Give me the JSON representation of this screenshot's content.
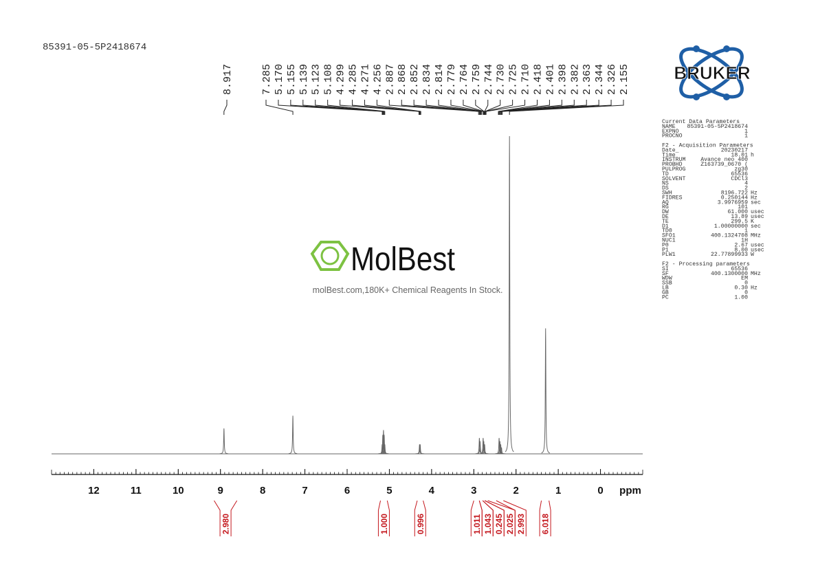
{
  "chart_data": {
    "type": "nmr",
    "title": "85391-05-5P2418674",
    "xlim": [
      13,
      -1
    ],
    "xticks": [
      12,
      11,
      10,
      9,
      8,
      7,
      6,
      5,
      4,
      3,
      2,
      1,
      0
    ],
    "xlabel": "ppm",
    "color": "#666666",
    "peak_labels": [
      {
        "value": 8.917,
        "label": "8.917"
      },
      {
        "value": 7.285,
        "label": "7.285"
      },
      {
        "value": 5.17,
        "label": "5.170"
      },
      {
        "value": 5.155,
        "label": "5.155"
      },
      {
        "value": 5.139,
        "label": "5.139"
      },
      {
        "value": 5.123,
        "label": "5.123"
      },
      {
        "value": 5.108,
        "label": "5.108"
      },
      {
        "value": 4.299,
        "label": "4.299"
      },
      {
        "value": 4.285,
        "label": "4.285"
      },
      {
        "value": 4.271,
        "label": "4.271"
      },
      {
        "value": 4.256,
        "label": "4.256"
      },
      {
        "value": 2.887,
        "label": "2.887"
      },
      {
        "value": 2.868,
        "label": "2.868"
      },
      {
        "value": 2.852,
        "label": "2.852"
      },
      {
        "value": 2.834,
        "label": "2.834"
      },
      {
        "value": 2.814,
        "label": "2.814"
      },
      {
        "value": 2.779,
        "label": "2.779"
      },
      {
        "value": 2.764,
        "label": "2.764"
      },
      {
        "value": 2.759,
        "label": "2.759"
      },
      {
        "value": 2.744,
        "label": "2.744"
      },
      {
        "value": 2.73,
        "label": "2.730"
      },
      {
        "value": 2.725,
        "label": "2.725"
      },
      {
        "value": 2.71,
        "label": "2.710"
      },
      {
        "value": 2.418,
        "label": "2.418"
      },
      {
        "value": 2.401,
        "label": "2.401"
      },
      {
        "value": 2.398,
        "label": "2.398"
      },
      {
        "value": 2.382,
        "label": "2.382"
      },
      {
        "value": 2.363,
        "label": "2.363"
      },
      {
        "value": 2.344,
        "label": "2.344"
      },
      {
        "value": 2.326,
        "label": "2.326"
      },
      {
        "value": 2.155,
        "label": "2.155"
      }
    ],
    "signals": {
      "ppm": [
        8.917,
        7.285,
        5.17,
        5.155,
        5.139,
        5.123,
        5.108,
        4.285,
        4.271,
        2.868,
        2.852,
        2.779,
        2.764,
        2.744,
        2.401,
        2.382,
        2.363,
        2.344,
        2.155,
        1.3
      ],
      "intensity": [
        8,
        12,
        3,
        6,
        7.5,
        6,
        3,
        3,
        3,
        5,
        4,
        5,
        4,
        3,
        5,
        4,
        3,
        2,
        100,
        39.5
      ]
    },
    "integrals": {
      "ranges": [
        [
          9.15,
          8.61
        ],
        [
          5.21,
          5.05
        ],
        [
          4.34,
          4.2
        ],
        [
          3.0,
          2.87
        ],
        [
          2.87,
          2.79
        ],
        [
          2.79,
          2.74
        ],
        [
          2.74,
          2.67
        ],
        [
          2.47,
          2.3
        ],
        [
          1.4,
          1.22
        ]
      ],
      "values": [
        2.98,
        1.0,
        0.996,
        1.011,
        1.043,
        0.245,
        2.025,
        2.993,
        6.018
      ],
      "value_labels": [
        "2.980",
        "1.000",
        "0.996",
        "1.011",
        "1.043",
        "0.245",
        "2.025",
        "2.993",
        "6.018"
      ]
    }
  },
  "watermark": {
    "brand": "MolBest",
    "tagline": "molBest.com,180K+ Chemical Reagents In Stock."
  },
  "logo": "BRUKER",
  "parameters": [
    {
      "title": "Current Data Parameters",
      "rows": [
        [
          "NAME",
          "85391-05-5P2418674"
        ],
        [
          "EXPNO",
          "1"
        ],
        [
          "PROCNO",
          "1"
        ]
      ]
    },
    {
      "title": "F2 - Acquisition Parameters",
      "rows": [
        [
          "Date_",
          "20230217"
        ],
        [
          "Time",
          "18.01",
          "h"
        ],
        [
          "INSTRUM",
          "Avance neo 400"
        ],
        [
          "PROBHD",
          "Z163739_0670 ("
        ],
        [
          "PULPROG",
          "zg30"
        ],
        [
          "TD",
          "65536"
        ],
        [
          "SOLVENT",
          "CDCl3"
        ],
        [
          "NS",
          "4"
        ],
        [
          "DS",
          "2"
        ],
        [
          "SWH",
          "8196.722",
          "Hz"
        ],
        [
          "FIDRES",
          "0.250144",
          "Hz"
        ],
        [
          "AQ",
          "3.9976959",
          "sec"
        ],
        [
          "RG",
          "101"
        ],
        [
          "DW",
          "61.000",
          "usec"
        ],
        [
          "DE",
          "13.89",
          "usec"
        ],
        [
          "TE",
          "299.5",
          "K"
        ],
        [
          "D1",
          "1.00000000",
          "sec"
        ],
        [
          "TD0",
          "1"
        ],
        [
          "SFO1",
          "400.1324708",
          "MHz"
        ],
        [
          "NUC1",
          "1H"
        ],
        [
          "P0",
          "2.67",
          "usec"
        ],
        [
          "P1",
          "8.00",
          "usec"
        ],
        [
          "PLW1",
          "22.77899933",
          "W"
        ]
      ]
    },
    {
      "title": "F2 - Processing parameters",
      "rows": [
        [
          "SI",
          "65536"
        ],
        [
          "SF",
          "400.1300000",
          "MHz"
        ],
        [
          "WDW",
          "EM"
        ],
        [
          "SSB",
          "0"
        ],
        [
          "LB",
          "0.30",
          "Hz"
        ],
        [
          "GB",
          "0"
        ],
        [
          "PC",
          "1.00"
        ]
      ]
    }
  ]
}
